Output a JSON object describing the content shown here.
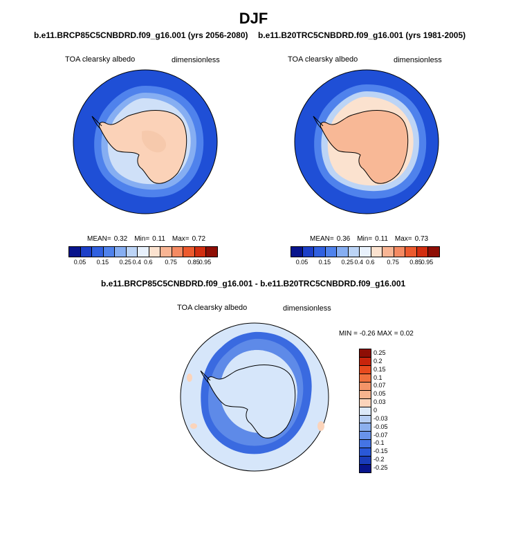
{
  "figure": {
    "season": "DJF",
    "variable": "TOA clearsky albedo",
    "units": "dimensionless"
  },
  "panels": [
    {
      "case": "b.e11.BRCP85C5CNBDRD.f09_g16.001 (yrs 2056-2080)",
      "variable": "TOA clearsky albedo",
      "units": "dimensionless",
      "stats": {
        "mean_label": "MEAN=",
        "mean": "0.32",
        "min_label": "Min=",
        "min": "0.11",
        "max_label": "Max=",
        "max": "0.72"
      }
    },
    {
      "case": "b.e11.B20TRC5CNBDRD.f09_g16.001 (yrs 1981-2005)",
      "variable": "TOA clearsky albedo",
      "units": "dimensionless",
      "stats": {
        "mean_label": "MEAN=",
        "mean": "0.36",
        "min_label": "Min=",
        "min": "0.11",
        "max_label": "Max=",
        "max": "0.73"
      }
    }
  ],
  "diff_panel": {
    "title": "b.e11.BRCP85C5CNBDRD.f09_g16.001 - b.e11.B20TRC5CNBDRD.f09_g16.001",
    "variable": "TOA clearsky albedo",
    "units": "dimensionless",
    "minmax": "MIN = -0.26 MAX = 0.02"
  },
  "colorbar_abs": {
    "tick_labels": [
      "0.05",
      "0.15",
      "0.25",
      "0.4",
      "0.6",
      "0.75",
      "0.85",
      "0.95"
    ],
    "colors": [
      "#08148c",
      "#1c3fc8",
      "#3060e0",
      "#4f82ec",
      "#86aef2",
      "#bcd4f6",
      "#e8f1fc",
      "#fbe2cf",
      "#f8b594",
      "#f48a62",
      "#ec5a2e",
      "#d22e10",
      "#8e0e05"
    ]
  },
  "colorbar_diff": {
    "tick_labels": [
      "0.25",
      "0.2",
      "0.15",
      "0.1",
      "0.07",
      "0.05",
      "0.03",
      "0",
      "-0.03",
      "-0.05",
      "-0.07",
      "-0.1",
      "-0.15",
      "-0.2",
      "-0.25"
    ],
    "colors": [
      "#8e0e05",
      "#c8240c",
      "#e84a1e",
      "#f0703e",
      "#f49468",
      "#f8b48e",
      "#fbd4bb",
      "#dce9f8",
      "#b6cef3",
      "#8cb0ee",
      "#6892ea",
      "#4574e4",
      "#2a58d8",
      "#1a3cba",
      "#08148c"
    ]
  },
  "colors": {
    "ocean_deep": "#1f4fd6",
    "sea_ice_inner": "#7ea6ee",
    "sea_ice_light": "#cfe0f8",
    "antarctica_fill_future": "#fbd2b8",
    "antarctica_fill_hist": "#f8b896",
    "diff_background": "#d6e6fa",
    "diff_ring": "#3a6ae0"
  }
}
